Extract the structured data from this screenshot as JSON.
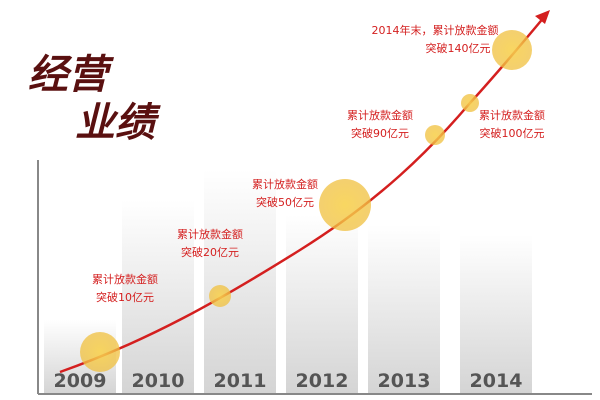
{
  "title_line1": "经营",
  "title_line2": "业绩",
  "years": [
    "2009",
    "2010",
    "2011",
    "2012",
    "2013",
    "2014"
  ],
  "milestones": [
    {
      "lines": [
        "累计放款金额",
        "突破10亿元"
      ]
    },
    {
      "lines": [
        "累计放款金额",
        "突破20亿元"
      ]
    },
    {
      "lines": [
        "累计放款金额",
        "突破50亿元"
      ]
    },
    {
      "lines": [
        "累计放款金额",
        "突破90亿元"
      ]
    },
    {
      "lines": [
        "累计放款金额",
        "突破100亿元"
      ]
    },
    {
      "lines": [
        "2014年末，累计放款金额",
        "突破140亿元"
      ]
    }
  ]
}
